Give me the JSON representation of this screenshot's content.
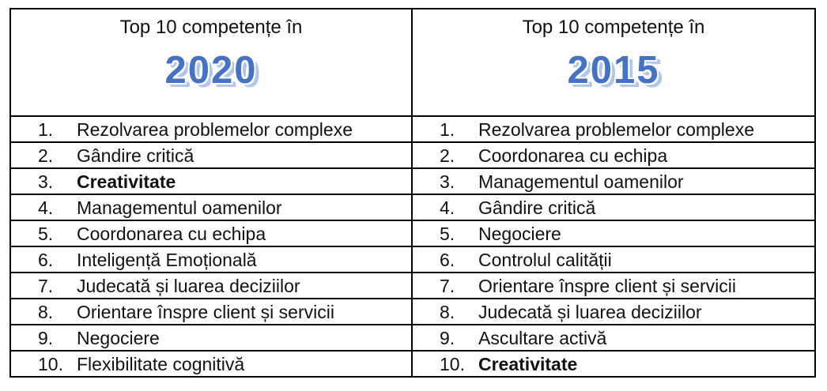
{
  "page": {
    "colors": {
      "year_fill": "#4472C4",
      "year_shadow": "#B2C6E9",
      "border": "#000000"
    },
    "columns": [
      {
        "title": "Top 10 competențe în",
        "year": "2020",
        "items": [
          {
            "num": "1.",
            "label": "Rezolvarea problemelor complexe",
            "bold": false
          },
          {
            "num": "2.",
            "label": "Gândire critică",
            "bold": false
          },
          {
            "num": "3.",
            "label": "Creativitate",
            "bold": true
          },
          {
            "num": "4.",
            "label": "Managementul oamenilor",
            "bold": false
          },
          {
            "num": "5.",
            "label": "Coordonarea cu echipa",
            "bold": false
          },
          {
            "num": "6.",
            "label": "Inteligență Emoțională",
            "bold": false
          },
          {
            "num": "7.",
            "label": "Judecată și luarea deciziilor",
            "bold": false
          },
          {
            "num": "8.",
            "label": "Orientare înspre client și servicii",
            "bold": false
          },
          {
            "num": "9.",
            "label": "Negociere",
            "bold": false
          },
          {
            "num": "10.",
            "label": "Flexibilitate cognitivă",
            "bold": false
          }
        ]
      },
      {
        "title": "Top 10 competențe în",
        "year": "2015",
        "items": [
          {
            "num": "1.",
            "label": "Rezolvarea problemelor complexe",
            "bold": false
          },
          {
            "num": "2.",
            "label": "Coordonarea cu echipa",
            "bold": false
          },
          {
            "num": "3.",
            "label": "Managementul oamenilor",
            "bold": false
          },
          {
            "num": "4.",
            "label": "Gândire critică",
            "bold": false
          },
          {
            "num": "5.",
            "label": "Negociere",
            "bold": false
          },
          {
            "num": "6.",
            "label": "Controlul calității",
            "bold": false
          },
          {
            "num": "7.",
            "label": "Orientare înspre client și servicii",
            "bold": false
          },
          {
            "num": "8.",
            "label": "Judecată și luarea deciziilor",
            "bold": false
          },
          {
            "num": "9.",
            "label": "Ascultare activă",
            "bold": false
          },
          {
            "num": "10.",
            "label": "Creativitate",
            "bold": true
          }
        ]
      }
    ]
  }
}
